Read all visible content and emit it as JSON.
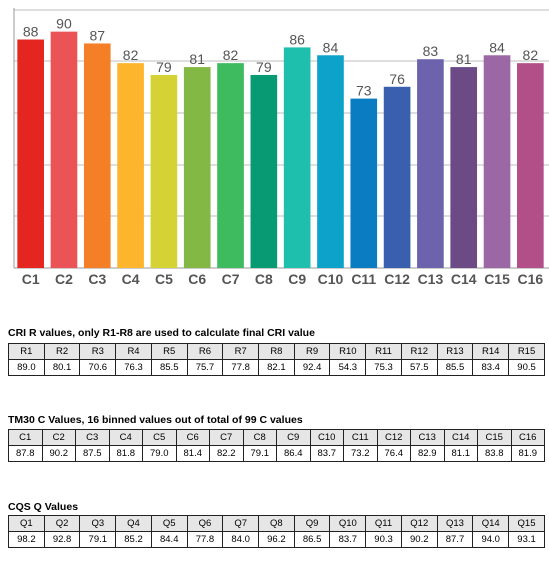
{
  "chart_data": {
    "type": "bar",
    "categories": [
      "C1",
      "C2",
      "C3",
      "C4",
      "C5",
      "C6",
      "C7",
      "C8",
      "C9",
      "C10",
      "C11",
      "C12",
      "C13",
      "C14",
      "C15",
      "C16"
    ],
    "values": [
      88,
      90,
      87,
      82,
      79,
      81,
      82,
      79,
      86,
      84,
      73,
      76,
      83,
      81,
      84,
      82
    ],
    "colors": [
      "#e52620",
      "#ea5456",
      "#f57f27",
      "#fcb52c",
      "#d4d234",
      "#82b843",
      "#3dbb5e",
      "#089a73",
      "#1fbfae",
      "#0da2c9",
      "#0a7cc2",
      "#3a5fae",
      "#6c63ac",
      "#6b4a85",
      "#9c67a5",
      "#b24f88"
    ],
    "ylim": [
      30,
      96
    ],
    "grid": true
  },
  "tables": {
    "cri": {
      "title": "CRI R values, only R1-R8 are used to calculate final CRI value",
      "headers": [
        "R1",
        "R2",
        "R3",
        "R4",
        "R5",
        "R6",
        "R7",
        "R8",
        "R9",
        "R10",
        "R11",
        "R12",
        "R13",
        "R14",
        "R15"
      ],
      "values": [
        "89.0",
        "80.1",
        "70.6",
        "76.3",
        "85.5",
        "75.7",
        "77.8",
        "82.1",
        "92.4",
        "54.3",
        "75.3",
        "57.5",
        "85.5",
        "83.4",
        "90.5"
      ]
    },
    "tm30": {
      "title": "TM30 C Values, 16 binned values out of total of 99 C values",
      "headers": [
        "C1",
        "C2",
        "C3",
        "C4",
        "C5",
        "C6",
        "C7",
        "C8",
        "C9",
        "C10",
        "C11",
        "C12",
        "C13",
        "C14",
        "C15",
        "C16"
      ],
      "values": [
        "87.8",
        "90.2",
        "87.5",
        "81.8",
        "79.0",
        "81.4",
        "82.2",
        "79.1",
        "86.4",
        "83.7",
        "73.2",
        "76.4",
        "82.9",
        "81.1",
        "83.8",
        "81.9"
      ]
    },
    "cqs": {
      "title": "CQS Q Values",
      "headers": [
        "Q1",
        "Q2",
        "Q3",
        "Q4",
        "Q5",
        "Q6",
        "Q7",
        "Q8",
        "Q9",
        "Q10",
        "Q11",
        "Q12",
        "Q13",
        "Q14",
        "Q15"
      ],
      "values": [
        "98.2",
        "92.8",
        "79.1",
        "85.2",
        "84.4",
        "77.8",
        "84.0",
        "96.2",
        "86.5",
        "83.7",
        "90.3",
        "90.2",
        "87.7",
        "94.0",
        "93.1"
      ]
    }
  }
}
